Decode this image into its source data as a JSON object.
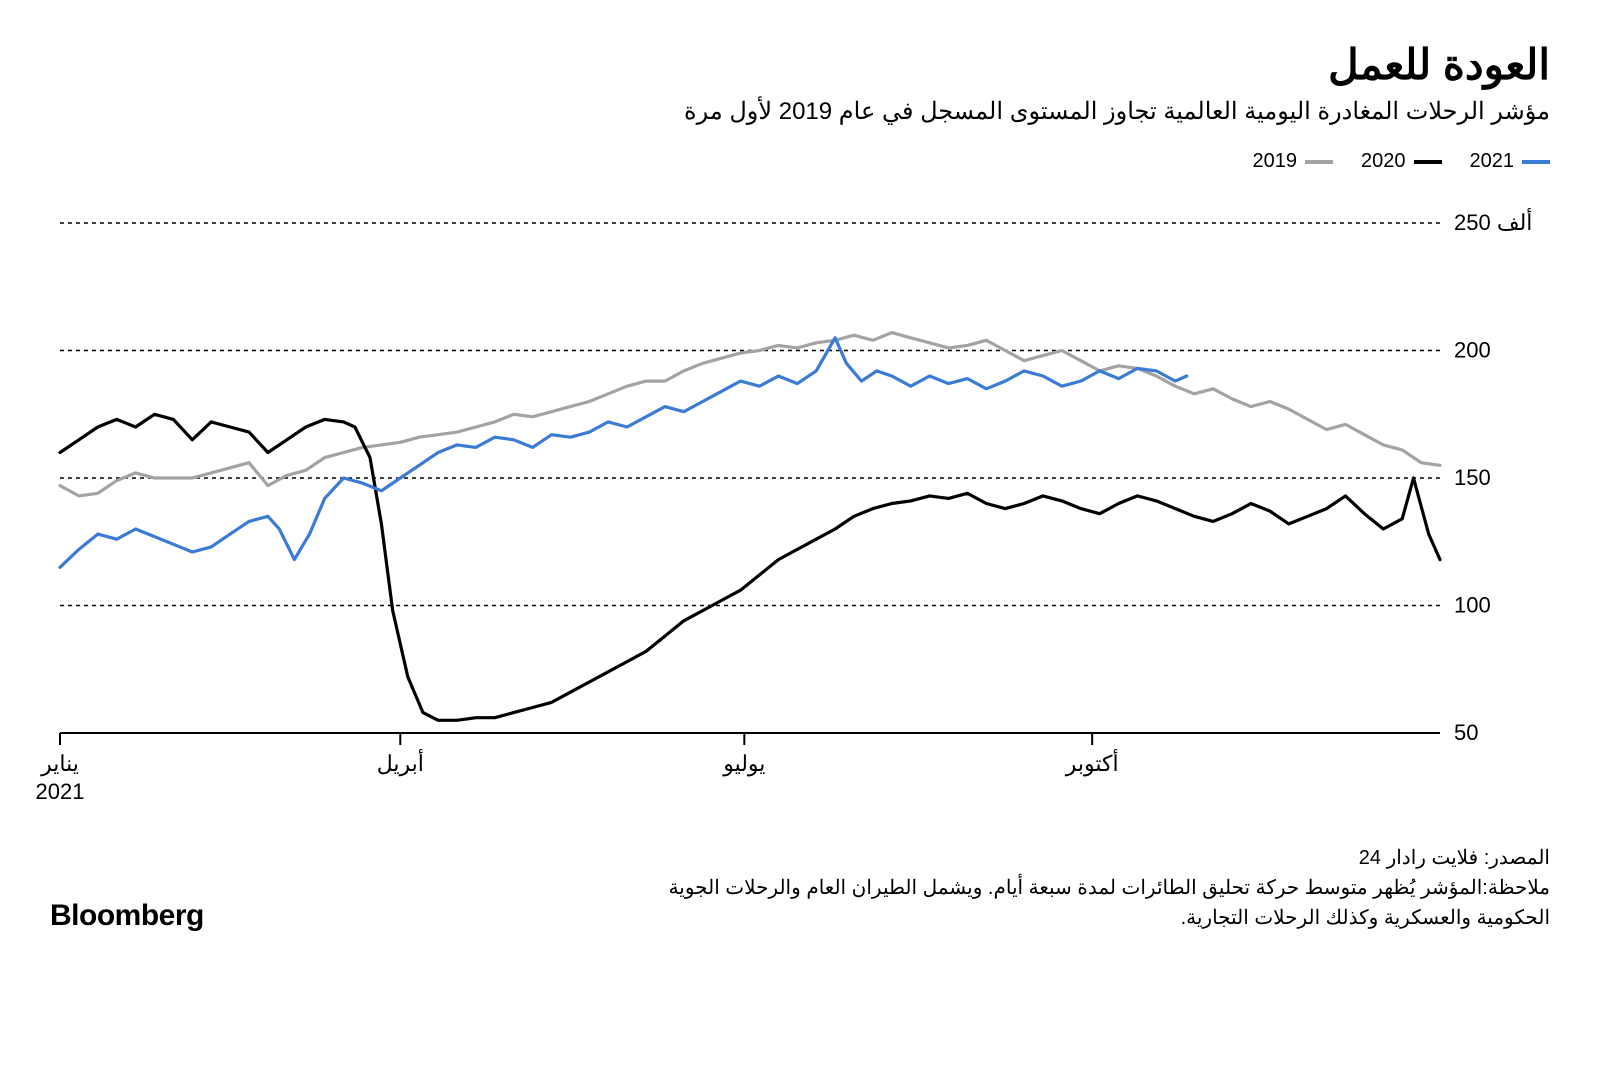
{
  "title": "العودة للعمل",
  "subtitle": "مؤشر الرحلات المغادرة اليومية العالمية تجاوز المستوى المسجل في عام 2019 لأول مرة",
  "legend": [
    {
      "label": "2021",
      "color": "#3a7bd5"
    },
    {
      "label": "2020",
      "color": "#000000"
    },
    {
      "label": "2019",
      "color": "#a3a3a3"
    }
  ],
  "chart": {
    "type": "line",
    "background_color": "#ffffff",
    "grid_color": "#000000",
    "grid_dash": "4 4",
    "line_width": 3.2,
    "ylim": [
      50,
      250
    ],
    "yticks": [
      50,
      100,
      150,
      200,
      250
    ],
    "ytick_labels": [
      "50",
      "100",
      "150",
      "200",
      "250 ألف"
    ],
    "xlim": [
      0,
      365
    ],
    "xticks": [
      {
        "pos": 0,
        "label_top": "يناير",
        "label_bottom": "2021"
      },
      {
        "pos": 90,
        "label_top": "أبريل",
        "label_bottom": ""
      },
      {
        "pos": 181,
        "label_top": "يوليو",
        "label_bottom": ""
      },
      {
        "pos": 273,
        "label_top": "أكتوبر",
        "label_bottom": ""
      }
    ],
    "series": [
      {
        "name": "2019",
        "color": "#a3a3a3",
        "data": [
          [
            0,
            147
          ],
          [
            5,
            143
          ],
          [
            10,
            144
          ],
          [
            15,
            149
          ],
          [
            20,
            152
          ],
          [
            25,
            150
          ],
          [
            30,
            150
          ],
          [
            35,
            150
          ],
          [
            40,
            152
          ],
          [
            45,
            154
          ],
          [
            50,
            156
          ],
          [
            55,
            147
          ],
          [
            60,
            151
          ],
          [
            65,
            153
          ],
          [
            70,
            158
          ],
          [
            75,
            160
          ],
          [
            80,
            162
          ],
          [
            85,
            163
          ],
          [
            90,
            164
          ],
          [
            95,
            166
          ],
          [
            100,
            167
          ],
          [
            105,
            168
          ],
          [
            110,
            170
          ],
          [
            115,
            172
          ],
          [
            120,
            175
          ],
          [
            125,
            174
          ],
          [
            130,
            176
          ],
          [
            135,
            178
          ],
          [
            140,
            180
          ],
          [
            145,
            183
          ],
          [
            150,
            186
          ],
          [
            155,
            188
          ],
          [
            160,
            188
          ],
          [
            165,
            192
          ],
          [
            170,
            195
          ],
          [
            175,
            197
          ],
          [
            180,
            199
          ],
          [
            185,
            200
          ],
          [
            190,
            202
          ],
          [
            195,
            201
          ],
          [
            200,
            203
          ],
          [
            205,
            204
          ],
          [
            210,
            206
          ],
          [
            215,
            204
          ],
          [
            220,
            207
          ],
          [
            225,
            205
          ],
          [
            230,
            203
          ],
          [
            235,
            201
          ],
          [
            240,
            202
          ],
          [
            245,
            204
          ],
          [
            250,
            200
          ],
          [
            255,
            196
          ],
          [
            260,
            198
          ],
          [
            265,
            200
          ],
          [
            270,
            196
          ],
          [
            275,
            192
          ],
          [
            280,
            194
          ],
          [
            285,
            193
          ],
          [
            290,
            190
          ],
          [
            295,
            186
          ],
          [
            300,
            183
          ],
          [
            305,
            185
          ],
          [
            310,
            181
          ],
          [
            315,
            178
          ],
          [
            320,
            180
          ],
          [
            325,
            177
          ],
          [
            330,
            173
          ],
          [
            335,
            169
          ],
          [
            340,
            171
          ],
          [
            345,
            167
          ],
          [
            350,
            163
          ],
          [
            355,
            161
          ],
          [
            360,
            156
          ],
          [
            365,
            155
          ]
        ]
      },
      {
        "name": "2020",
        "color": "#000000",
        "data": [
          [
            0,
            160
          ],
          [
            5,
            165
          ],
          [
            10,
            170
          ],
          [
            15,
            173
          ],
          [
            20,
            170
          ],
          [
            25,
            175
          ],
          [
            30,
            173
          ],
          [
            35,
            165
          ],
          [
            40,
            172
          ],
          [
            45,
            170
          ],
          [
            50,
            168
          ],
          [
            55,
            160
          ],
          [
            60,
            165
          ],
          [
            65,
            170
          ],
          [
            70,
            173
          ],
          [
            75,
            172
          ],
          [
            78,
            170
          ],
          [
            82,
            158
          ],
          [
            85,
            132
          ],
          [
            88,
            98
          ],
          [
            92,
            72
          ],
          [
            96,
            58
          ],
          [
            100,
            55
          ],
          [
            105,
            55
          ],
          [
            110,
            56
          ],
          [
            115,
            56
          ],
          [
            120,
            58
          ],
          [
            125,
            60
          ],
          [
            130,
            62
          ],
          [
            135,
            66
          ],
          [
            140,
            70
          ],
          [
            145,
            74
          ],
          [
            150,
            78
          ],
          [
            155,
            82
          ],
          [
            160,
            88
          ],
          [
            165,
            94
          ],
          [
            170,
            98
          ],
          [
            175,
            102
          ],
          [
            180,
            106
          ],
          [
            185,
            112
          ],
          [
            190,
            118
          ],
          [
            195,
            122
          ],
          [
            200,
            126
          ],
          [
            205,
            130
          ],
          [
            210,
            135
          ],
          [
            215,
            138
          ],
          [
            220,
            140
          ],
          [
            225,
            141
          ],
          [
            230,
            143
          ],
          [
            235,
            142
          ],
          [
            240,
            144
          ],
          [
            245,
            140
          ],
          [
            250,
            138
          ],
          [
            255,
            140
          ],
          [
            260,
            143
          ],
          [
            265,
            141
          ],
          [
            270,
            138
          ],
          [
            275,
            136
          ],
          [
            280,
            140
          ],
          [
            285,
            143
          ],
          [
            290,
            141
          ],
          [
            295,
            138
          ],
          [
            300,
            135
          ],
          [
            305,
            133
          ],
          [
            310,
            136
          ],
          [
            315,
            140
          ],
          [
            320,
            137
          ],
          [
            325,
            132
          ],
          [
            330,
            135
          ],
          [
            335,
            138
          ],
          [
            340,
            143
          ],
          [
            345,
            136
          ],
          [
            350,
            130
          ],
          [
            355,
            134
          ],
          [
            358,
            150
          ],
          [
            362,
            128
          ],
          [
            365,
            118
          ]
        ]
      },
      {
        "name": "2021",
        "color": "#3a7bd5",
        "data": [
          [
            0,
            115
          ],
          [
            5,
            122
          ],
          [
            10,
            128
          ],
          [
            15,
            126
          ],
          [
            20,
            130
          ],
          [
            25,
            127
          ],
          [
            30,
            124
          ],
          [
            35,
            121
          ],
          [
            40,
            123
          ],
          [
            45,
            128
          ],
          [
            50,
            133
          ],
          [
            55,
            135
          ],
          [
            58,
            130
          ],
          [
            62,
            118
          ],
          [
            66,
            128
          ],
          [
            70,
            142
          ],
          [
            75,
            150
          ],
          [
            80,
            148
          ],
          [
            85,
            145
          ],
          [
            90,
            150
          ],
          [
            95,
            155
          ],
          [
            100,
            160
          ],
          [
            105,
            163
          ],
          [
            110,
            162
          ],
          [
            115,
            166
          ],
          [
            120,
            165
          ],
          [
            125,
            162
          ],
          [
            130,
            167
          ],
          [
            135,
            166
          ],
          [
            140,
            168
          ],
          [
            145,
            172
          ],
          [
            150,
            170
          ],
          [
            155,
            174
          ],
          [
            160,
            178
          ],
          [
            165,
            176
          ],
          [
            170,
            180
          ],
          [
            175,
            184
          ],
          [
            180,
            188
          ],
          [
            185,
            186
          ],
          [
            190,
            190
          ],
          [
            195,
            187
          ],
          [
            200,
            192
          ],
          [
            205,
            205
          ],
          [
            208,
            195
          ],
          [
            212,
            188
          ],
          [
            216,
            192
          ],
          [
            220,
            190
          ],
          [
            225,
            186
          ],
          [
            230,
            190
          ],
          [
            235,
            187
          ],
          [
            240,
            189
          ],
          [
            245,
            185
          ],
          [
            250,
            188
          ],
          [
            255,
            192
          ],
          [
            260,
            190
          ],
          [
            265,
            186
          ],
          [
            270,
            188
          ],
          [
            275,
            192
          ],
          [
            280,
            189
          ],
          [
            285,
            193
          ],
          [
            290,
            192
          ],
          [
            295,
            188
          ],
          [
            298,
            190
          ]
        ]
      }
    ]
  },
  "source": "المصدر: فلايت رادار 24",
  "note": "ملاحظة:المؤشر يُظهر متوسط حركة تحليق الطائرات لمدة سبعة أيام. ويشمل الطيران العام والرحلات الجوية الحكومية والعسكرية وكذلك الرحلات التجارية.",
  "brand": "Bloomberg",
  "label_fontsize": 22,
  "title_fontsize": 42,
  "subtitle_fontsize": 24
}
